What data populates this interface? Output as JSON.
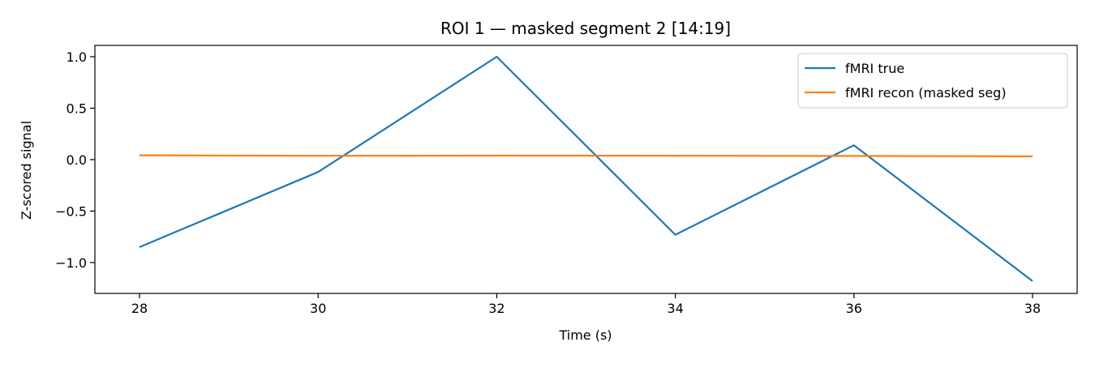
{
  "chart_data": {
    "type": "line",
    "title": "ROI 1 — masked segment 2 [14:19]",
    "xlabel": "Time (s)",
    "ylabel": "Z-scored signal",
    "xlim": [
      27.5,
      38.5
    ],
    "ylim": [
      -1.3,
      1.11
    ],
    "xticks": [
      28,
      30,
      32,
      34,
      36,
      38
    ],
    "xtick_labels": [
      "28",
      "30",
      "32",
      "34",
      "36",
      "38"
    ],
    "yticks": [
      1.0,
      0.5,
      0.0,
      -0.5,
      -1.0
    ],
    "ytick_labels": [
      "1.0",
      "0.5",
      "0.0",
      "−0.5",
      "−1.0"
    ],
    "grid": false,
    "legend_position": "top-right",
    "x": [
      28,
      30,
      32,
      34,
      36,
      38
    ],
    "series": [
      {
        "name": "fMRI true",
        "color": "#1f77b4",
        "values": [
          -0.85,
          -0.12,
          1.0,
          -0.73,
          0.14,
          -1.18
        ]
      },
      {
        "name": "fMRI recon (masked seg)",
        "color": "#ff7f0e",
        "values": [
          0.042,
          0.037,
          0.039,
          0.038,
          0.036,
          0.032
        ]
      }
    ]
  }
}
